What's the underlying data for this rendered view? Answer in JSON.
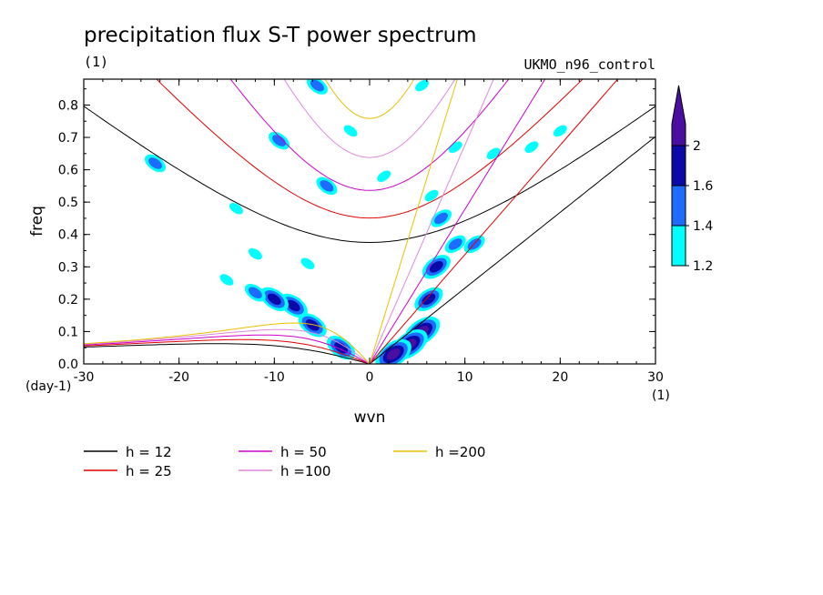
{
  "chart_data": {
    "type": "contour",
    "title": "precipitation flux S-T power spectrum",
    "subtitle_left": "(1)",
    "subtitle_right": "UKMO_n96_control",
    "xlabel": "wvn",
    "ylabel": "freq",
    "x_unit": "(1)",
    "y_unit": "(day-1)",
    "xlim": [
      -30,
      30
    ],
    "ylim": [
      0,
      0.88
    ],
    "x_ticks": [
      -30,
      -20,
      -10,
      0,
      10,
      20,
      30
    ],
    "x_tick_labels": [
      "-30",
      "-20",
      "-10",
      "0",
      "10",
      "20",
      "30"
    ],
    "y_ticks": [
      0.0,
      0.1,
      0.2,
      0.3,
      0.4,
      0.5,
      0.6,
      0.7,
      0.8
    ],
    "y_tick_labels": [
      "0.0",
      "0.1",
      "0.2",
      "0.3",
      "0.4",
      "0.5",
      "0.6",
      "0.7",
      "0.8"
    ],
    "colorbar": {
      "levels": [
        1.2,
        1.4,
        1.6,
        2
      ],
      "labels": [
        "1.2",
        "1.4",
        "1.6",
        "2"
      ],
      "colors": [
        "#00ffff",
        "#1e6cff",
        "#0a0aa8",
        "#4a0fa0"
      ]
    },
    "dispersion_curves": [
      {
        "label": "h = 12",
        "h": 12,
        "color": "#000000"
      },
      {
        "label": "h = 25",
        "h": 25,
        "color": "#e00000"
      },
      {
        "label": "h = 50",
        "h": 50,
        "color": "#cc00cc"
      },
      {
        "label": "h =100",
        "h": 100,
        "color": "#dd88dd"
      },
      {
        "label": "h =200",
        "h": 200,
        "color": "#e8c000"
      }
    ],
    "spectral_peaks": [
      {
        "x": 5.5,
        "y": 0.1,
        "level": 2
      },
      {
        "x": 4.2,
        "y": 0.06,
        "level": 2
      },
      {
        "x": 2.5,
        "y": 0.03,
        "level": 2
      },
      {
        "x": 6.2,
        "y": 0.2,
        "level": 1.6
      },
      {
        "x": 7.0,
        "y": 0.3,
        "level": 1.6
      },
      {
        "x": -8.0,
        "y": 0.18,
        "level": 1.6
      },
      {
        "x": -10.0,
        "y": 0.2,
        "level": 1.6
      },
      {
        "x": -6.0,
        "y": 0.12,
        "level": 1.6
      },
      {
        "x": -3.0,
        "y": 0.05,
        "level": 1.6
      },
      {
        "x": -12.0,
        "y": 0.22,
        "level": 1.4
      },
      {
        "x": -15.0,
        "y": 0.26,
        "level": 1.2
      },
      {
        "x": -9.5,
        "y": 0.69,
        "level": 1.4
      },
      {
        "x": -22.5,
        "y": 0.62,
        "level": 1.4
      },
      {
        "x": 9.0,
        "y": 0.37,
        "level": 1.4
      },
      {
        "x": 11.0,
        "y": 0.37,
        "level": 1.4
      },
      {
        "x": 7.5,
        "y": 0.45,
        "level": 1.4
      },
      {
        "x": -5.5,
        "y": 0.86,
        "level": 1.4
      },
      {
        "x": -4.5,
        "y": 0.55,
        "level": 1.4
      },
      {
        "x": 5.5,
        "y": 0.86,
        "level": 1.2
      },
      {
        "x": 13.0,
        "y": 0.65,
        "level": 1.2
      },
      {
        "x": -14.0,
        "y": 0.48,
        "level": 1.2
      },
      {
        "x": 9.0,
        "y": 0.67,
        "level": 1.2
      },
      {
        "x": 6.5,
        "y": 0.52,
        "level": 1.2
      },
      {
        "x": -6.5,
        "y": 0.31,
        "level": 1.2
      },
      {
        "x": 17.0,
        "y": 0.67,
        "level": 1.2
      },
      {
        "x": 20.0,
        "y": 0.72,
        "level": 1.2
      },
      {
        "x": -12.0,
        "y": 0.34,
        "level": 1.2
      },
      {
        "x": 1.5,
        "y": 0.58,
        "level": 1.2
      },
      {
        "x": -2.0,
        "y": 0.72,
        "level": 1.2
      }
    ]
  }
}
